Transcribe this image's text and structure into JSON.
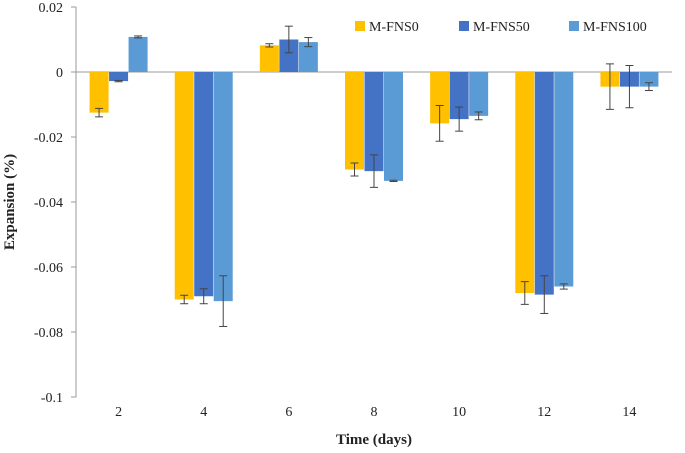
{
  "chart_data": {
    "type": "bar",
    "xlabel": "Time (days)",
    "ylabel": "Expansion (%)",
    "ylim": [
      -0.1,
      0.02
    ],
    "yticks": [
      0.02,
      0,
      -0.02,
      -0.04,
      -0.06,
      -0.08,
      -0.1
    ],
    "ytick_labels": [
      "0.02",
      "0",
      "-0.02",
      "-0.04",
      "-0.06",
      "-0.08",
      "-0.1"
    ],
    "categories": [
      "2",
      "4",
      "6",
      "8",
      "10",
      "12",
      "14"
    ],
    "legend_position": "top-right",
    "grid": false,
    "series": [
      {
        "name": "M-FNS0",
        "color": "#FFC000",
        "values": [
          -0.0125,
          -0.07,
          0.0082,
          -0.03,
          -0.0158,
          -0.068,
          -0.0045
        ],
        "errors": [
          0.0013,
          0.0013,
          0.0005,
          0.002,
          0.0055,
          0.0035,
          0.007
        ]
      },
      {
        "name": "M-FNS50",
        "color": "#4472C4",
        "values": [
          -0.0028,
          -0.069,
          0.01,
          -0.0305,
          -0.0145,
          -0.0685,
          -0.0045
        ],
        "errors": [
          0.0002,
          0.0023,
          0.0041,
          0.005,
          0.0037,
          0.0058,
          0.0065
        ]
      },
      {
        "name": "M-FNS100",
        "color": "#5B9BD5",
        "values": [
          0.0108,
          -0.0705,
          0.0092,
          -0.0335,
          -0.0135,
          -0.066,
          -0.0045
        ],
        "errors": [
          0.0003,
          0.0078,
          0.0014,
          0.0002,
          0.0012,
          0.0008,
          0.0012
        ]
      }
    ]
  }
}
